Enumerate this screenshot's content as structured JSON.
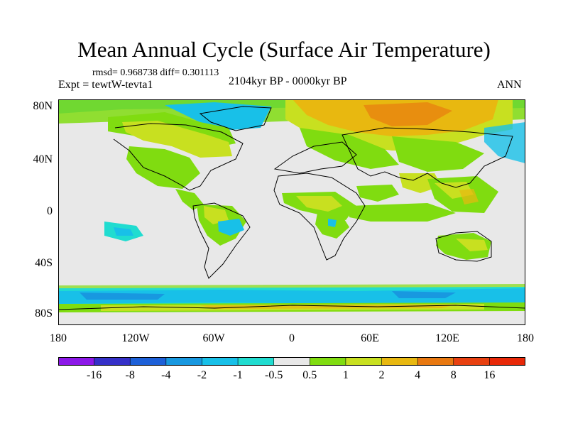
{
  "title": "Mean Annual Cycle (Surface Air Temperature)",
  "stats": "rmsd= 0.968738 diff= 0.301113",
  "experiment": "Expt = tewtW-tevta1",
  "period": "2104kyr BP - 0000kyr BP",
  "season": "ANN",
  "lat_labels": [
    "80N",
    "40N",
    "0",
    "40S",
    "80S"
  ],
  "lon_labels": [
    "180",
    "120W",
    "60W",
    "0",
    "60E",
    "120E",
    "180"
  ],
  "colorbar": {
    "labels": [
      "-16",
      "-8",
      "-4",
      "-2",
      "-1",
      "-0.5",
      "0.5",
      "1",
      "2",
      "4",
      "8",
      "16"
    ],
    "colors": [
      "#8c18e8",
      "#3530c8",
      "#1d60d8",
      "#1898e0",
      "#18c0e8",
      "#20dcd0",
      "#e8e8e8",
      "#80dc10",
      "#c8e020",
      "#e8b810",
      "#e87810",
      "#e84010",
      "#e82808"
    ]
  },
  "field_colors": {
    "neutral": "#e8e8e8",
    "warm1": "#80dc10",
    "warm2": "#c8e020",
    "warm3": "#e8b810",
    "warm4": "#e87810",
    "cool1": "#20dcd0",
    "cool2": "#18c0e8",
    "cool3": "#1898e0"
  }
}
